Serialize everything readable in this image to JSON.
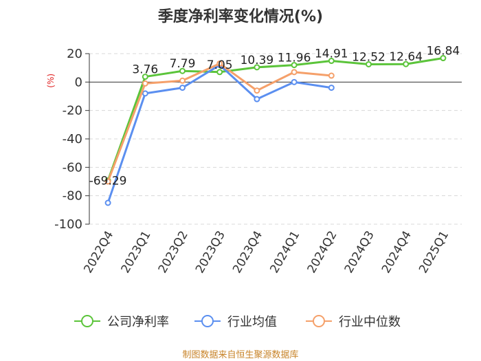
{
  "title": "季度净利率变化情况(%)",
  "source": "制图数据来自恒生聚源数据库",
  "chart_data": {
    "type": "line",
    "title": "季度净利率变化情况(%)",
    "unit_label": "(%)",
    "categories": [
      "2022Q4",
      "2023Q1",
      "2023Q2",
      "2023Q3",
      "2023Q4",
      "2024Q1",
      "2024Q2",
      "2024Q3",
      "2024Q4",
      "2025Q1"
    ],
    "ylim": [
      -100,
      20
    ],
    "yticks": [
      20,
      0,
      -20,
      -40,
      -60,
      -80,
      -100
    ],
    "ytick_labels": [
      "20",
      "0",
      "-20",
      "-40",
      "-60",
      "-80",
      "-100"
    ],
    "grid": true,
    "legend_position": "bottom",
    "series": [
      {
        "name": "公司净利率",
        "color": "#5bc43a",
        "values": [
          -69.29,
          3.76,
          7.79,
          7.05,
          10.39,
          11.96,
          14.91,
          12.52,
          12.64,
          16.84
        ],
        "labels": [
          "-69.29",
          "3.76",
          "7.79",
          "7.05",
          "10.39",
          "11.96",
          "14.91",
          "12.52",
          "12.64",
          "16.84"
        ]
      },
      {
        "name": "行业均值",
        "color": "#5b8ff0",
        "values": [
          -85,
          -8,
          -4,
          12,
          -12,
          0,
          -4,
          null,
          null,
          null
        ]
      },
      {
        "name": "行业中位数",
        "color": "#f5a06a",
        "values": [
          -70,
          -1,
          1,
          13,
          -6,
          7,
          4.5,
          null,
          null,
          null
        ]
      }
    ]
  }
}
